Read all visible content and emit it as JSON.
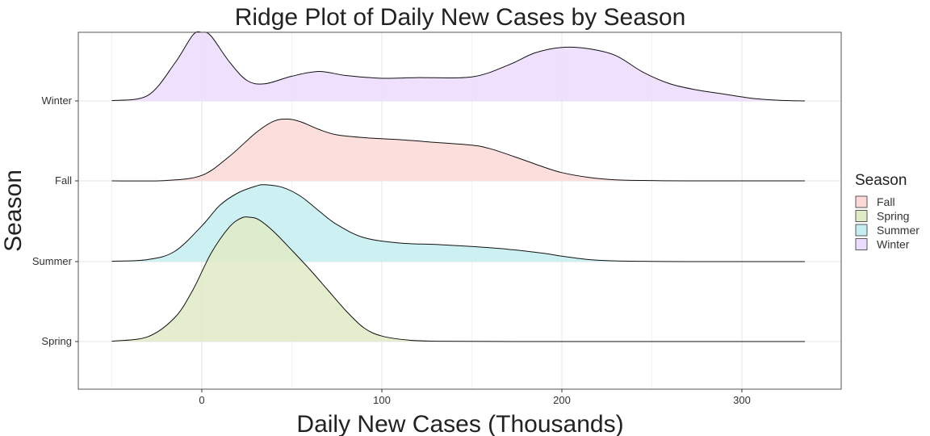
{
  "chart_data": {
    "type": "ridge",
    "title": "Ridge Plot of Daily New Cases by Season",
    "xlabel": "Daily New Cases (Thousands)",
    "ylabel": "Season",
    "xlim": [
      -50,
      335
    ],
    "xticks": [
      0,
      100,
      200,
      300
    ],
    "grid": true,
    "legend": {
      "title": "Season",
      "position": "right",
      "entries": [
        "Fall",
        "Spring",
        "Summer",
        "Winter"
      ]
    },
    "colors": {
      "Fall": "#fcd9d7",
      "Spring": "#dfebc6",
      "Summer": "#c4eef0",
      "Winter": "#ecdcfd"
    },
    "ridge_order_bottom_to_top": [
      "Spring",
      "Summer",
      "Fall",
      "Winter"
    ],
    "series": [
      {
        "name": "Winter",
        "x": [
          -50,
          -30,
          -15,
          -5,
          0,
          5,
          15,
          25,
          35,
          50,
          65,
          80,
          100,
          120,
          150,
          170,
          185,
          200,
          215,
          230,
          245,
          260,
          275,
          290,
          305,
          320,
          335
        ],
        "density": [
          0.005,
          0.08,
          0.55,
          0.96,
          1.0,
          0.95,
          0.58,
          0.3,
          0.25,
          0.36,
          0.43,
          0.37,
          0.33,
          0.34,
          0.35,
          0.52,
          0.7,
          0.78,
          0.76,
          0.66,
          0.42,
          0.25,
          0.16,
          0.1,
          0.04,
          0.01,
          0.0
        ]
      },
      {
        "name": "Fall",
        "x": [
          -50,
          -20,
          0,
          15,
          30,
          40,
          48,
          55,
          65,
          75,
          90,
          110,
          130,
          150,
          160,
          175,
          190,
          200,
          215,
          230,
          250,
          270,
          300,
          335
        ],
        "density": [
          0.0,
          0.005,
          0.08,
          0.35,
          0.7,
          0.87,
          0.9,
          0.86,
          0.75,
          0.67,
          0.63,
          0.6,
          0.56,
          0.52,
          0.47,
          0.34,
          0.2,
          0.12,
          0.05,
          0.015,
          0.004,
          0.0,
          0.0,
          0.0
        ]
      },
      {
        "name": "Summer",
        "x": [
          -50,
          -30,
          -15,
          0,
          10,
          20,
          30,
          35,
          45,
          55,
          65,
          75,
          90,
          110,
          130,
          150,
          170,
          190,
          200,
          215,
          230,
          250,
          270,
          300,
          335
        ],
        "density": [
          0.005,
          0.03,
          0.15,
          0.52,
          0.82,
          1.0,
          1.1,
          1.12,
          1.08,
          0.95,
          0.74,
          0.54,
          0.35,
          0.27,
          0.25,
          0.22,
          0.18,
          0.12,
          0.08,
          0.03,
          0.01,
          0.003,
          0.0,
          0.0,
          0.0
        ]
      },
      {
        "name": "Spring",
        "x": [
          -50,
          -30,
          -15,
          -5,
          5,
          15,
          22,
          27,
          32,
          40,
          50,
          60,
          70,
          80,
          90,
          100,
          115,
          130,
          160,
          200,
          250,
          300,
          335
        ],
        "density": [
          0.005,
          0.07,
          0.35,
          0.75,
          1.28,
          1.66,
          1.8,
          1.81,
          1.77,
          1.6,
          1.33,
          1.05,
          0.75,
          0.45,
          0.2,
          0.08,
          0.02,
          0.005,
          0.001,
          0.0,
          0.0,
          0.0,
          0.0
        ]
      }
    ]
  }
}
